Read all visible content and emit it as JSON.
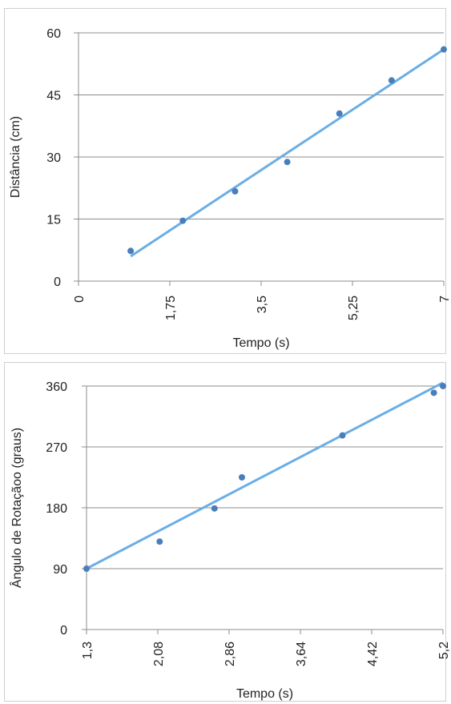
{
  "chart_data": [
    {
      "type": "scatter",
      "title": "",
      "xlabel": "Tempo (s)",
      "ylabel": "Distância (cm)",
      "xlim": [
        0,
        7
      ],
      "ylim": [
        0,
        60
      ],
      "xticks": [
        0,
        1.75,
        3.5,
        5.25,
        7
      ],
      "xtick_labels": [
        "0",
        "1,75",
        "3,5",
        "5,25",
        "7"
      ],
      "yticks": [
        0,
        15,
        30,
        45,
        60
      ],
      "ytick_labels": [
        "0",
        "15",
        "30",
        "45",
        "60"
      ],
      "grid": "horizontal",
      "legend": "none",
      "series": [
        {
          "x": [
            1,
            2,
            3,
            4,
            5,
            6,
            7
          ],
          "y": [
            7.3,
            14.6,
            21.7,
            28.8,
            40.5,
            48.5,
            56
          ]
        }
      ],
      "trendline": {
        "x": [
          1,
          7
        ],
        "y": [
          6,
          56
        ]
      },
      "colors": {
        "points": "#4a7ebb",
        "trendline": "#6aaee6",
        "grid": "#8c8c8c"
      }
    },
    {
      "type": "scatter",
      "title": "",
      "xlabel": "Tempo (s)",
      "ylabel": "Ângulo de Rotaçãoo (graus)",
      "xlim": [
        1.3,
        5.2
      ],
      "ylim": [
        0,
        360
      ],
      "xticks": [
        1.3,
        2.08,
        2.86,
        3.64,
        4.42,
        5.2
      ],
      "xtick_labels": [
        "1,3",
        "2,08",
        "2,86",
        "3,64",
        "4,42",
        "5,2"
      ],
      "yticks": [
        0,
        90,
        180,
        270,
        360
      ],
      "ytick_labels": [
        "0",
        "90",
        "180",
        "270",
        "360"
      ],
      "grid": "horizontal",
      "legend": "none",
      "series": [
        {
          "x": [
            1.3,
            2.1,
            2.7,
            3.0,
            4.1,
            5.1,
            5.2
          ],
          "y": [
            90,
            130,
            179,
            225,
            287,
            350,
            360
          ]
        }
      ],
      "trendline": {
        "x": [
          1.3,
          5.2
        ],
        "y": [
          90,
          365
        ]
      },
      "colors": {
        "points": "#4a7ebb",
        "trendline": "#6aaee6",
        "grid": "#8c8c8c"
      }
    }
  ]
}
